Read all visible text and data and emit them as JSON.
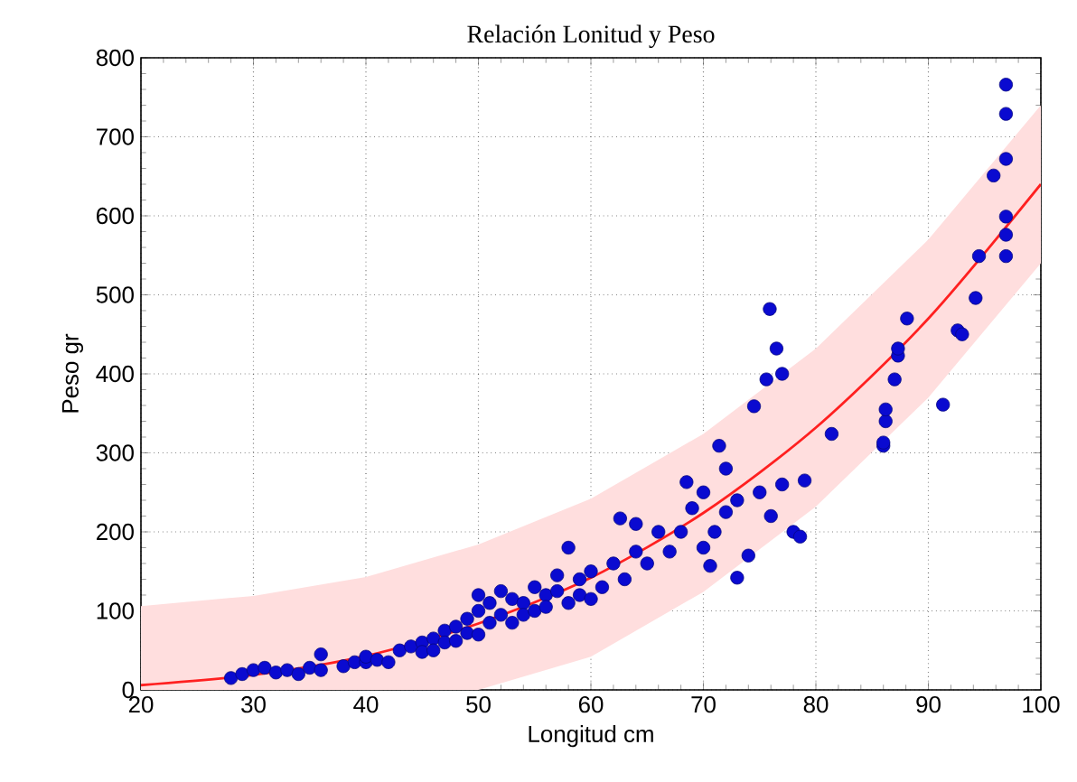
{
  "chart_data": {
    "type": "scatter",
    "title": "Relación Lonitud y Peso",
    "xlabel": "Longitud cm",
    "ylabel": "Peso gr",
    "xlim": [
      20,
      100
    ],
    "ylim": [
      0,
      800
    ],
    "xticks": [
      20,
      30,
      40,
      50,
      60,
      70,
      80,
      90,
      100
    ],
    "yticks": [
      0,
      100,
      200,
      300,
      400,
      500,
      600,
      700,
      800
    ],
    "grid": true,
    "series": [
      {
        "marker": "circle",
        "color": "#0a0ad0",
        "x": [
          28,
          29,
          30,
          31,
          32,
          33,
          34,
          35,
          36,
          36,
          38,
          39,
          40,
          40,
          41,
          42,
          43,
          44,
          45,
          45,
          46,
          46,
          47,
          47,
          48,
          48,
          49,
          49,
          50,
          50,
          50,
          51,
          51,
          52,
          52,
          53,
          53,
          54,
          54,
          55,
          55,
          56,
          56,
          57,
          57,
          58,
          58,
          59,
          59,
          60,
          60,
          61,
          62,
          62.6,
          63,
          64,
          64,
          65,
          66,
          67,
          68,
          68.5,
          69,
          70,
          70,
          70.6,
          71,
          71.4,
          72,
          72,
          73,
          73,
          74,
          74.5,
          75,
          75.6,
          75.9,
          76,
          76.5,
          77,
          77,
          78,
          78.6,
          79,
          81.4,
          86,
          86,
          86.2,
          86.2,
          87,
          87.3,
          87.3,
          88.1,
          91.3,
          92.6,
          93,
          94.2,
          94.5,
          95.8,
          96.9,
          96.9,
          96.9,
          96.9,
          96.9,
          96.9
        ],
        "values": [
          15,
          20,
          25,
          28,
          22,
          25,
          20,
          28,
          45,
          25,
          30,
          35,
          35,
          42,
          38,
          35,
          50,
          55,
          60,
          48,
          65,
          50,
          75,
          60,
          80,
          62,
          90,
          72,
          100,
          70,
          120,
          110,
          85,
          95,
          125,
          85,
          115,
          110,
          95,
          130,
          100,
          120,
          105,
          125,
          145,
          180,
          110,
          140,
          120,
          150,
          115,
          130,
          160,
          217,
          140,
          210,
          175,
          160,
          200,
          175,
          200,
          263,
          230,
          250,
          180,
          157,
          200,
          309,
          280,
          225,
          142,
          240,
          170,
          359,
          250,
          393,
          482,
          220,
          432,
          400,
          260,
          200,
          194,
          265,
          324,
          309,
          313,
          340,
          355,
          393,
          423,
          432,
          470,
          361,
          455,
          450,
          496,
          549,
          651,
          766,
          729,
          672,
          599,
          576,
          549
        ]
      },
      {
        "type": "line",
        "marker": "none",
        "color": "#ff2020",
        "x": [
          20,
          30,
          40,
          50,
          60,
          70,
          80,
          90,
          100
        ],
        "values": [
          6,
          19,
          43,
          84,
          142,
          224,
          332,
          470,
          640
        ],
        "lower": [
          0,
          0,
          0,
          0,
          42,
          124,
          232,
          370,
          540
        ],
        "upper": [
          106,
          119,
          143,
          184,
          242,
          324,
          432,
          570,
          740
        ]
      }
    ]
  }
}
